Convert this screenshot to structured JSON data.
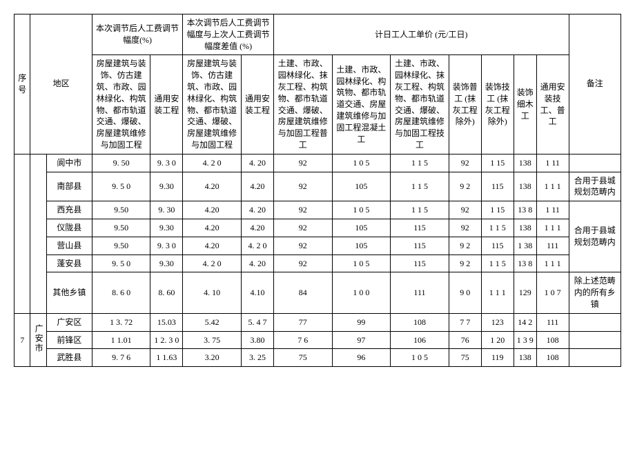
{
  "headers": {
    "seq": "序号",
    "region": "地区",
    "group1": "本次调节后人工费调节幅度(%)",
    "group2": "本次调节后人工费调节幅度与上次人工费调节幅度差值 (%)",
    "group3": "计日工人工单价 (元/工日)",
    "remark": "备注",
    "colA": "房屋建筑与装饰、仿古建筑、市政、园林绿化、构筑物、都市轨道交通、爆破、房屋建筑维修与加固工程",
    "colB": "通用安装工程",
    "colC": "房屋建筑与装饰、仿古建筑、市政、园林绿化、构筑物、都市轨道交通、爆破、房屋建筑维修与加固工程",
    "colD": "通用安装工程",
    "colE": "土建、市政、园林绿化、抹灰工程、构筑物、都市轨道交通、爆破、房屋建筑维修与加固工程普工",
    "colF": "土建、市政、园林绿化、构筑物、都市轨道交通、房屋建筑维修与加固工程混凝土工",
    "colG": "土建、市政、园林绿化、抹灰工程、构筑物、都市轨道交通、爆破、房屋建筑维修与加固工程技工",
    "colH": "装饰普工 (抹灰工程除外)",
    "colI": "装饰技工 (抹灰工程除外)",
    "colJ": "装饰细木工",
    "colK": "通用安装技工、普工"
  },
  "rows": [
    {
      "name": "阆中市",
      "a": "9. 50",
      "b": "9. 3 0",
      "c": "4. 2 0",
      "d": "4. 20",
      "e": "92",
      "f": "1 0 5",
      "g": "1 1 5",
      "h": "92",
      "i": "1 15",
      "j": "138",
      "k": "1 11",
      "remark": ""
    },
    {
      "name": "南部县",
      "a": "9. 5 0",
      "b": "9.30",
      "c": "4.20",
      "d": "4.20",
      "e": "92",
      "f": "105",
      "g": "1 1 5",
      "h": "9 2",
      "i": "115",
      "j": "138",
      "k": "1 1 1",
      "remark": "合用于县城规划范畴内"
    },
    {
      "name": "西充县",
      "a": "9.50",
      "b": "9. 30",
      "c": "4.20",
      "d": "4. 20",
      "e": "92",
      "f": "1 0 5",
      "g": "1 1 5",
      "h": "92",
      "i": "1 15",
      "j": "13 8",
      "k": "1 11",
      "remark": ""
    },
    {
      "name": "仪陇县",
      "a": "9.50",
      "b": "9.30",
      "c": "4.20",
      "d": "4.20",
      "e": "92",
      "f": "105",
      "g": "115",
      "h": "92",
      "i": "1 1 5",
      "j": "138",
      "k": "1 1 1",
      "remark": ""
    },
    {
      "name": "营山县",
      "a": "9.50",
      "b": "9. 3 0",
      "c": "4.20",
      "d": "4. 2 0",
      "e": "92",
      "f": "105",
      "g": "115",
      "h": "9 2",
      "i": "115",
      "j": "1 38",
      "k": "111",
      "remark": ""
    },
    {
      "name": "蓬安县",
      "a": "9.  5 0",
      "b": "9.30",
      "c": "4. 2 0",
      "d": "4. 20",
      "e": "92",
      "f": "1 0 5",
      "g": "115",
      "h": "9 2",
      "i": "1 1 5",
      "j": "13 8",
      "k": "1 1 1",
      "remark": ""
    },
    {
      "name": "其他乡镇",
      "a": "8.  6 0",
      "b": "8. 60",
      "c": "4. 10",
      "d": "4.10",
      "e": "84",
      "f": "1 0 0",
      "g": "111",
      "h": "9 0",
      "i": "1 1 1",
      "j": "129",
      "k": "1 0 7",
      "remark": "除上述范畴内的所有乡镇"
    },
    {
      "name": "广安区",
      "a": "1 3. 72",
      "b": "15.03",
      "c": "5.42",
      "d": "5. 4 7",
      "e": "77",
      "f": "99",
      "g": "108",
      "h": "7 7",
      "i": "123",
      "j": "14 2",
      "k": "111",
      "remark": ""
    },
    {
      "name": "前锋区",
      "a": "1 1.01",
      "b": "1 2. 3 0",
      "c": "3.  75",
      "d": "3.80",
      "e": "7 6",
      "f": "97",
      "g": "106",
      "h": "76",
      "i": "1 20",
      "j": "1 3 9",
      "k": "108",
      "remark": ""
    },
    {
      "name": "武胜县",
      "a": "9. 7 6",
      "b": "1 1.63",
      "c": "3.20",
      "d": "3. 25",
      "e": "75",
      "f": "96",
      "g": "1 0 5",
      "h": "75",
      "i": "119",
      "j": "138",
      "k": "108",
      "remark": ""
    }
  ],
  "region2_seq": "7",
  "region2_name": "广安市",
  "remark_group": "合用于县城规划范畴内",
  "colwidths": {
    "seq": "2.5%",
    "reg1": "2.5%",
    "reg2": "7%",
    "a": "9%",
    "b": "5%",
    "c": "9%",
    "d": "5%",
    "e": "9%",
    "f": "9%",
    "g": "9%",
    "h": "5%",
    "i": "5%",
    "j": "3.5%",
    "k": "5%",
    "remark": "8%"
  }
}
